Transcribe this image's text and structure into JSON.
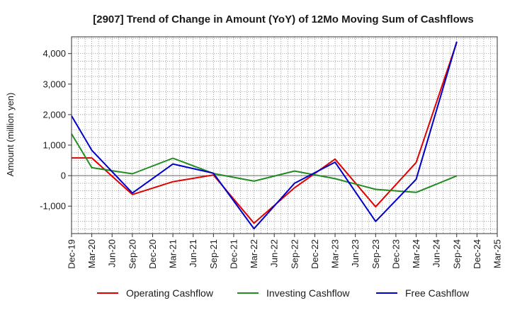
{
  "chart_data": {
    "type": "line",
    "title": "[2907]  Trend of Change in Amount (YoY) of 12Mo Moving Sum of Cashflows",
    "xlabel": "",
    "ylabel": "Amount (million yen)",
    "ylim": [
      -1900,
      4550
    ],
    "yticks": [
      4000,
      3000,
      2000,
      1000,
      0,
      -1000
    ],
    "ytick_labels": [
      "4,000",
      "3,000",
      "2,000",
      "1,000",
      "0",
      "-1,000"
    ],
    "categories": [
      "Dec-19",
      "Mar-20",
      "Jun-20",
      "Sep-20",
      "Dec-20",
      "Mar-21",
      "Jun-21",
      "Sep-21",
      "Dec-21",
      "Mar-22",
      "Jun-22",
      "Sep-22",
      "Dec-22",
      "Mar-23",
      "Jun-23",
      "Sep-23",
      "Dec-23",
      "Mar-24",
      "Jun-24",
      "Sep-24",
      "Dec-24",
      "Mar-25"
    ],
    "tick_labels": [
      "Dec-19",
      "Mar-20",
      "Jun-20",
      "Sep-20",
      "Dec-20",
      "Mar-21",
      "Jun-21",
      "Sep-21",
      "Dec-21",
      "Mar-22",
      "Jun-22",
      "Sep-22",
      "Dec-22",
      "Mar-23",
      "Jun-23",
      "Sep-23",
      "Dec-23",
      "Mar-24",
      "Jun-24",
      "Sep-24",
      "Dec-24",
      "Mar-25"
    ],
    "grid": true,
    "legend_position": "bottom",
    "series": [
      {
        "name": "Operating Cashflow",
        "color": "#e00000",
        "points": [
          [
            "Dec-19",
            580
          ],
          [
            "Mar-20",
            580
          ],
          [
            "Sep-20",
            -620
          ],
          [
            "Mar-21",
            -200
          ],
          [
            "Sep-21",
            20
          ],
          [
            "Mar-22",
            -1560
          ],
          [
            "Sep-22",
            -400
          ],
          [
            "Mar-23",
            540
          ],
          [
            "Sep-23",
            -1020
          ],
          [
            "Mar-24",
            430
          ],
          [
            "Sep-24",
            4370
          ]
        ]
      },
      {
        "name": "Investing Cashflow",
        "color": "#228b22",
        "points": [
          [
            "Dec-19",
            1370
          ],
          [
            "Mar-20",
            260
          ],
          [
            "Sep-20",
            60
          ],
          [
            "Mar-21",
            570
          ],
          [
            "Sep-21",
            70
          ],
          [
            "Mar-22",
            -180
          ],
          [
            "Sep-22",
            150
          ],
          [
            "Mar-23",
            -100
          ],
          [
            "Sep-23",
            -450
          ],
          [
            "Mar-24",
            -550
          ],
          [
            "Sep-24",
            -10
          ]
        ]
      },
      {
        "name": "Free Cashflow",
        "color": "#0000cc",
        "points": [
          [
            "Dec-19",
            1960
          ],
          [
            "Mar-20",
            830
          ],
          [
            "Sep-20",
            -570
          ],
          [
            "Mar-21",
            380
          ],
          [
            "Sep-21",
            80
          ],
          [
            "Mar-22",
            -1740
          ],
          [
            "Sep-22",
            -250
          ],
          [
            "Mar-23",
            440
          ],
          [
            "Sep-23",
            -1500
          ],
          [
            "Mar-24",
            -120
          ],
          [
            "Sep-24",
            4390
          ]
        ]
      }
    ]
  }
}
